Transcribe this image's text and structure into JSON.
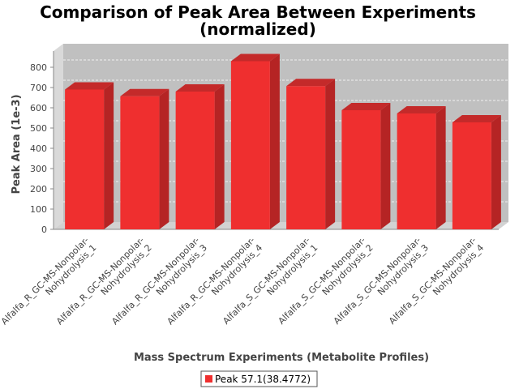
{
  "chart_data": {
    "type": "bar",
    "title_line1": "Comparison of Peak Area Between Experiments",
    "title_line2": "(normalized)",
    "xlabel": "Mass Spectrum Experiments (Metabolite Profiles)",
    "ylabel": "Peak Area (1e-3)",
    "ylim": [
      0,
      880
    ],
    "yticks": [
      "0",
      "100",
      "200",
      "300",
      "400",
      "500",
      "600",
      "700",
      "800"
    ],
    "categories": [
      [
        "Alfalfa_R_GC-MS-Nonpolar-",
        "Nohydrolysis_1"
      ],
      [
        "Alfalfa_R_GC-MS-Nonpolar-",
        "Nohydrolysis_2"
      ],
      [
        "Alfalfa_R_GC-MS-Nonpolar-",
        "Nohydrolysis_3"
      ],
      [
        "Alfalfa_R_GC-MS-Nonpolar-",
        "Nohydrolysis_4"
      ],
      [
        "Alfalfa_S_GC-MS-Nonpolar-",
        "Nohydrolysis_1"
      ],
      [
        "Alfalfa_S_GC-MS-Nonpolar-",
        "Nohydrolysis_2"
      ],
      [
        "Alfalfa_S_GC-MS-Nonpolar-",
        "Nohydrolysis_3"
      ],
      [
        "Alfalfa_S_GC-MS-Nonpolar-",
        "Nohydrolysis_4"
      ]
    ],
    "series": [
      {
        "name": "Peak 57.1(38.4772)",
        "color": "#ef2f2f",
        "values": [
          690,
          657,
          680,
          830,
          707,
          588,
          572,
          528
        ]
      }
    ],
    "grid": true,
    "legend": "bottom-center",
    "plot_bg": "#c0c0c0"
  }
}
